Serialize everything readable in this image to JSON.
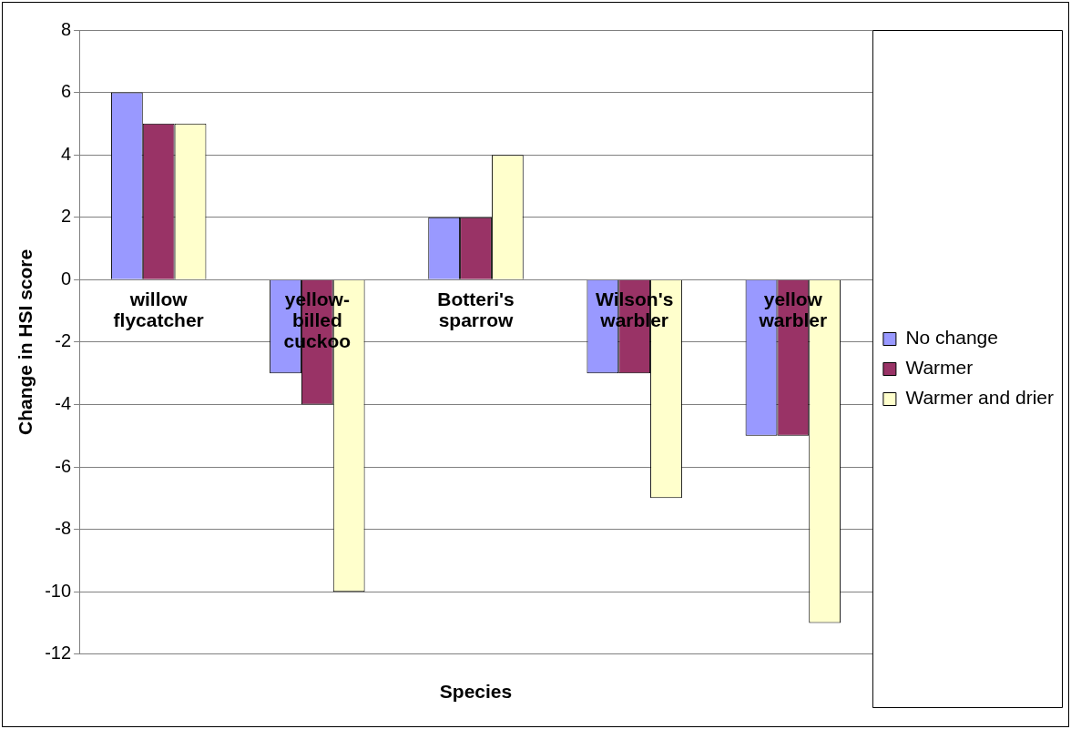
{
  "chart_data": {
    "type": "bar",
    "xlabel": "Species",
    "ylabel": "Change in HSI score",
    "categories": [
      "willow flycatcher",
      "yellow-billed cuckoo",
      "Botteri's sparrow",
      "Wilson's warbler",
      "yellow warbler"
    ],
    "series": [
      {
        "name": "No change",
        "color": "#9999ff",
        "values": [
          6,
          -3,
          2,
          -3,
          -5
        ]
      },
      {
        "name": "Warmer",
        "color": "#993366",
        "values": [
          5,
          -4,
          2,
          -3,
          -5
        ]
      },
      {
        "name": "Warmer and drier",
        "color": "#ffffcc",
        "values": [
          5,
          -10,
          4,
          -7,
          -11
        ]
      }
    ],
    "ylim": [
      -12,
      8
    ],
    "yticks": [
      -12,
      -10,
      -8,
      -6,
      -4,
      -2,
      0,
      2,
      4,
      6,
      8
    ],
    "grid": "y",
    "legend": "right"
  }
}
